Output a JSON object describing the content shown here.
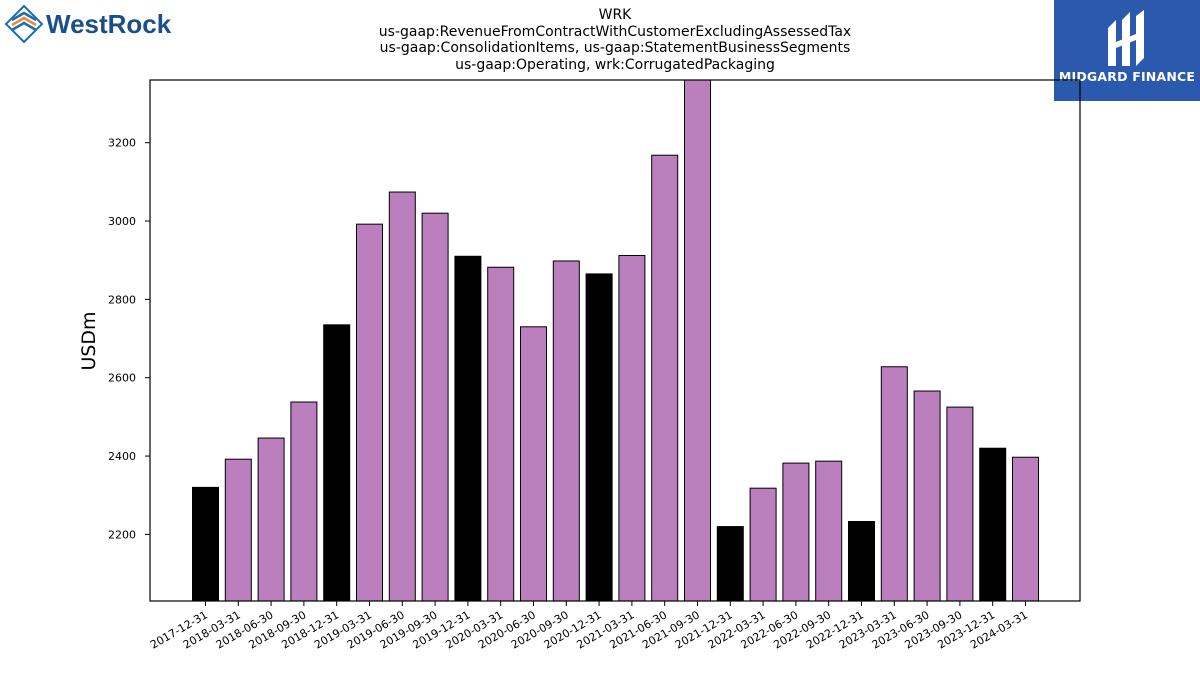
{
  "header": {
    "title_lines": [
      "WRK",
      "us-gaap:RevenueFromContractWithCustomerExcludingAssessedTax",
      "us-gaap:ConsolidationItems, us-gaap:StatementBusinessSegments",
      "us-gaap:Operating, wrk:CorrugatedPackaging"
    ]
  },
  "logos": {
    "left": {
      "text": "WestRock",
      "icon": "westrock-diamond-logo-icon",
      "color": "#1b4f8a"
    },
    "right": {
      "text": "MIDGARD FINANCE",
      "icon": "midgard-finance-logo-icon",
      "background": "#2b59ad"
    }
  },
  "chart_data": {
    "type": "bar",
    "ylabel": "USDm",
    "xlabel": "",
    "ylim": [
      2030,
      3360
    ],
    "yticks": [
      2200,
      2400,
      2600,
      2800,
      3000,
      3200
    ],
    "grid": false,
    "categories": [
      "2017-12-31",
      "2018-03-31",
      "2018-06-30",
      "2018-09-30",
      "2018-12-31",
      "2019-03-31",
      "2019-06-30",
      "2019-09-30",
      "2019-12-31",
      "2020-03-31",
      "2020-06-30",
      "2020-09-30",
      "2020-12-31",
      "2021-03-31",
      "2021-06-30",
      "2021-09-30",
      "2021-12-31",
      "2022-03-31",
      "2022-06-30",
      "2022-09-30",
      "2022-12-31",
      "2023-03-31",
      "2023-06-30",
      "2023-09-30",
      "2023-12-31",
      "2024-03-31"
    ],
    "values": [
      2320,
      2392,
      2446,
      2538,
      2735,
      2992,
      3074,
      3020,
      2910,
      2882,
      2730,
      2898,
      2865,
      2912,
      3168,
      3360,
      2220,
      2318,
      2382,
      2387,
      2233,
      2628,
      2566,
      2525,
      2420,
      2397
    ],
    "bar_colors": [
      "#000000",
      "#bb7fbd",
      "#bb7fbd",
      "#bb7fbd",
      "#000000",
      "#bb7fbd",
      "#bb7fbd",
      "#bb7fbd",
      "#000000",
      "#bb7fbd",
      "#bb7fbd",
      "#bb7fbd",
      "#000000",
      "#bb7fbd",
      "#bb7fbd",
      "#bb7fbd",
      "#000000",
      "#bb7fbd",
      "#bb7fbd",
      "#bb7fbd",
      "#000000",
      "#bb7fbd",
      "#bb7fbd",
      "#bb7fbd",
      "#000000",
      "#bb7fbd"
    ],
    "colors": {
      "quarter": "#bb7fbd",
      "year_end": "#000000"
    }
  }
}
